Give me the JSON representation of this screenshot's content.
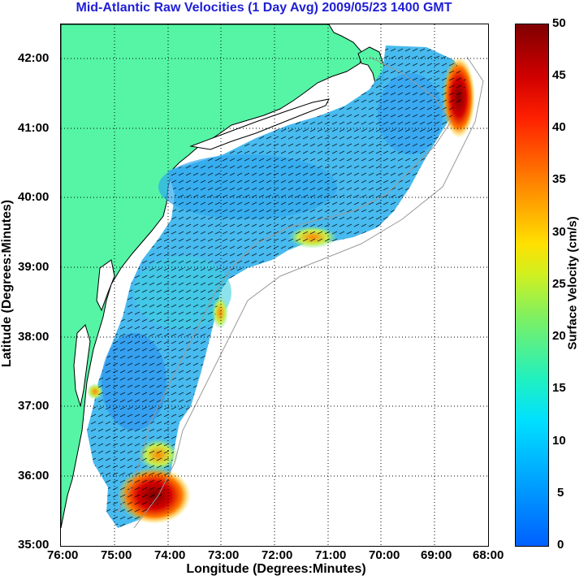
{
  "title": "Mid-Atlantic Raw Velocities (1 Day Avg) 2009/05/23 1400 GMT",
  "xlabel": "Longitude (Degrees:Minutes)",
  "ylabel": "Latitude (Degrees:Minutes)",
  "colorbar_label": "Surface Velocity (cm/s)",
  "x_ticks": [
    "76:00",
    "75:00",
    "74:00",
    "73:00",
    "72:00",
    "71:00",
    "70:00",
    "69:00",
    "68:00"
  ],
  "y_ticks": [
    "42:00",
    "41:00",
    "40:00",
    "39:00",
    "38:00",
    "37:00",
    "36:00",
    "35:00"
  ],
  "colorbar_ticks": [
    "50",
    "45",
    "40",
    "35",
    "30",
    "25",
    "20",
    "15",
    "10",
    "5",
    "0"
  ],
  "colors": {
    "title": "#1f1fd6",
    "land": "#55f5a5",
    "coast": "#000000",
    "bathymetry": "#9a9a9a",
    "arrows": "#000000"
  },
  "map": {
    "lon_range": [
      -76,
      -68
    ],
    "lat_range": [
      35,
      42.5
    ],
    "colorbar_range": [
      0,
      50
    ],
    "colormap": "jet",
    "grid": "dotted"
  }
}
